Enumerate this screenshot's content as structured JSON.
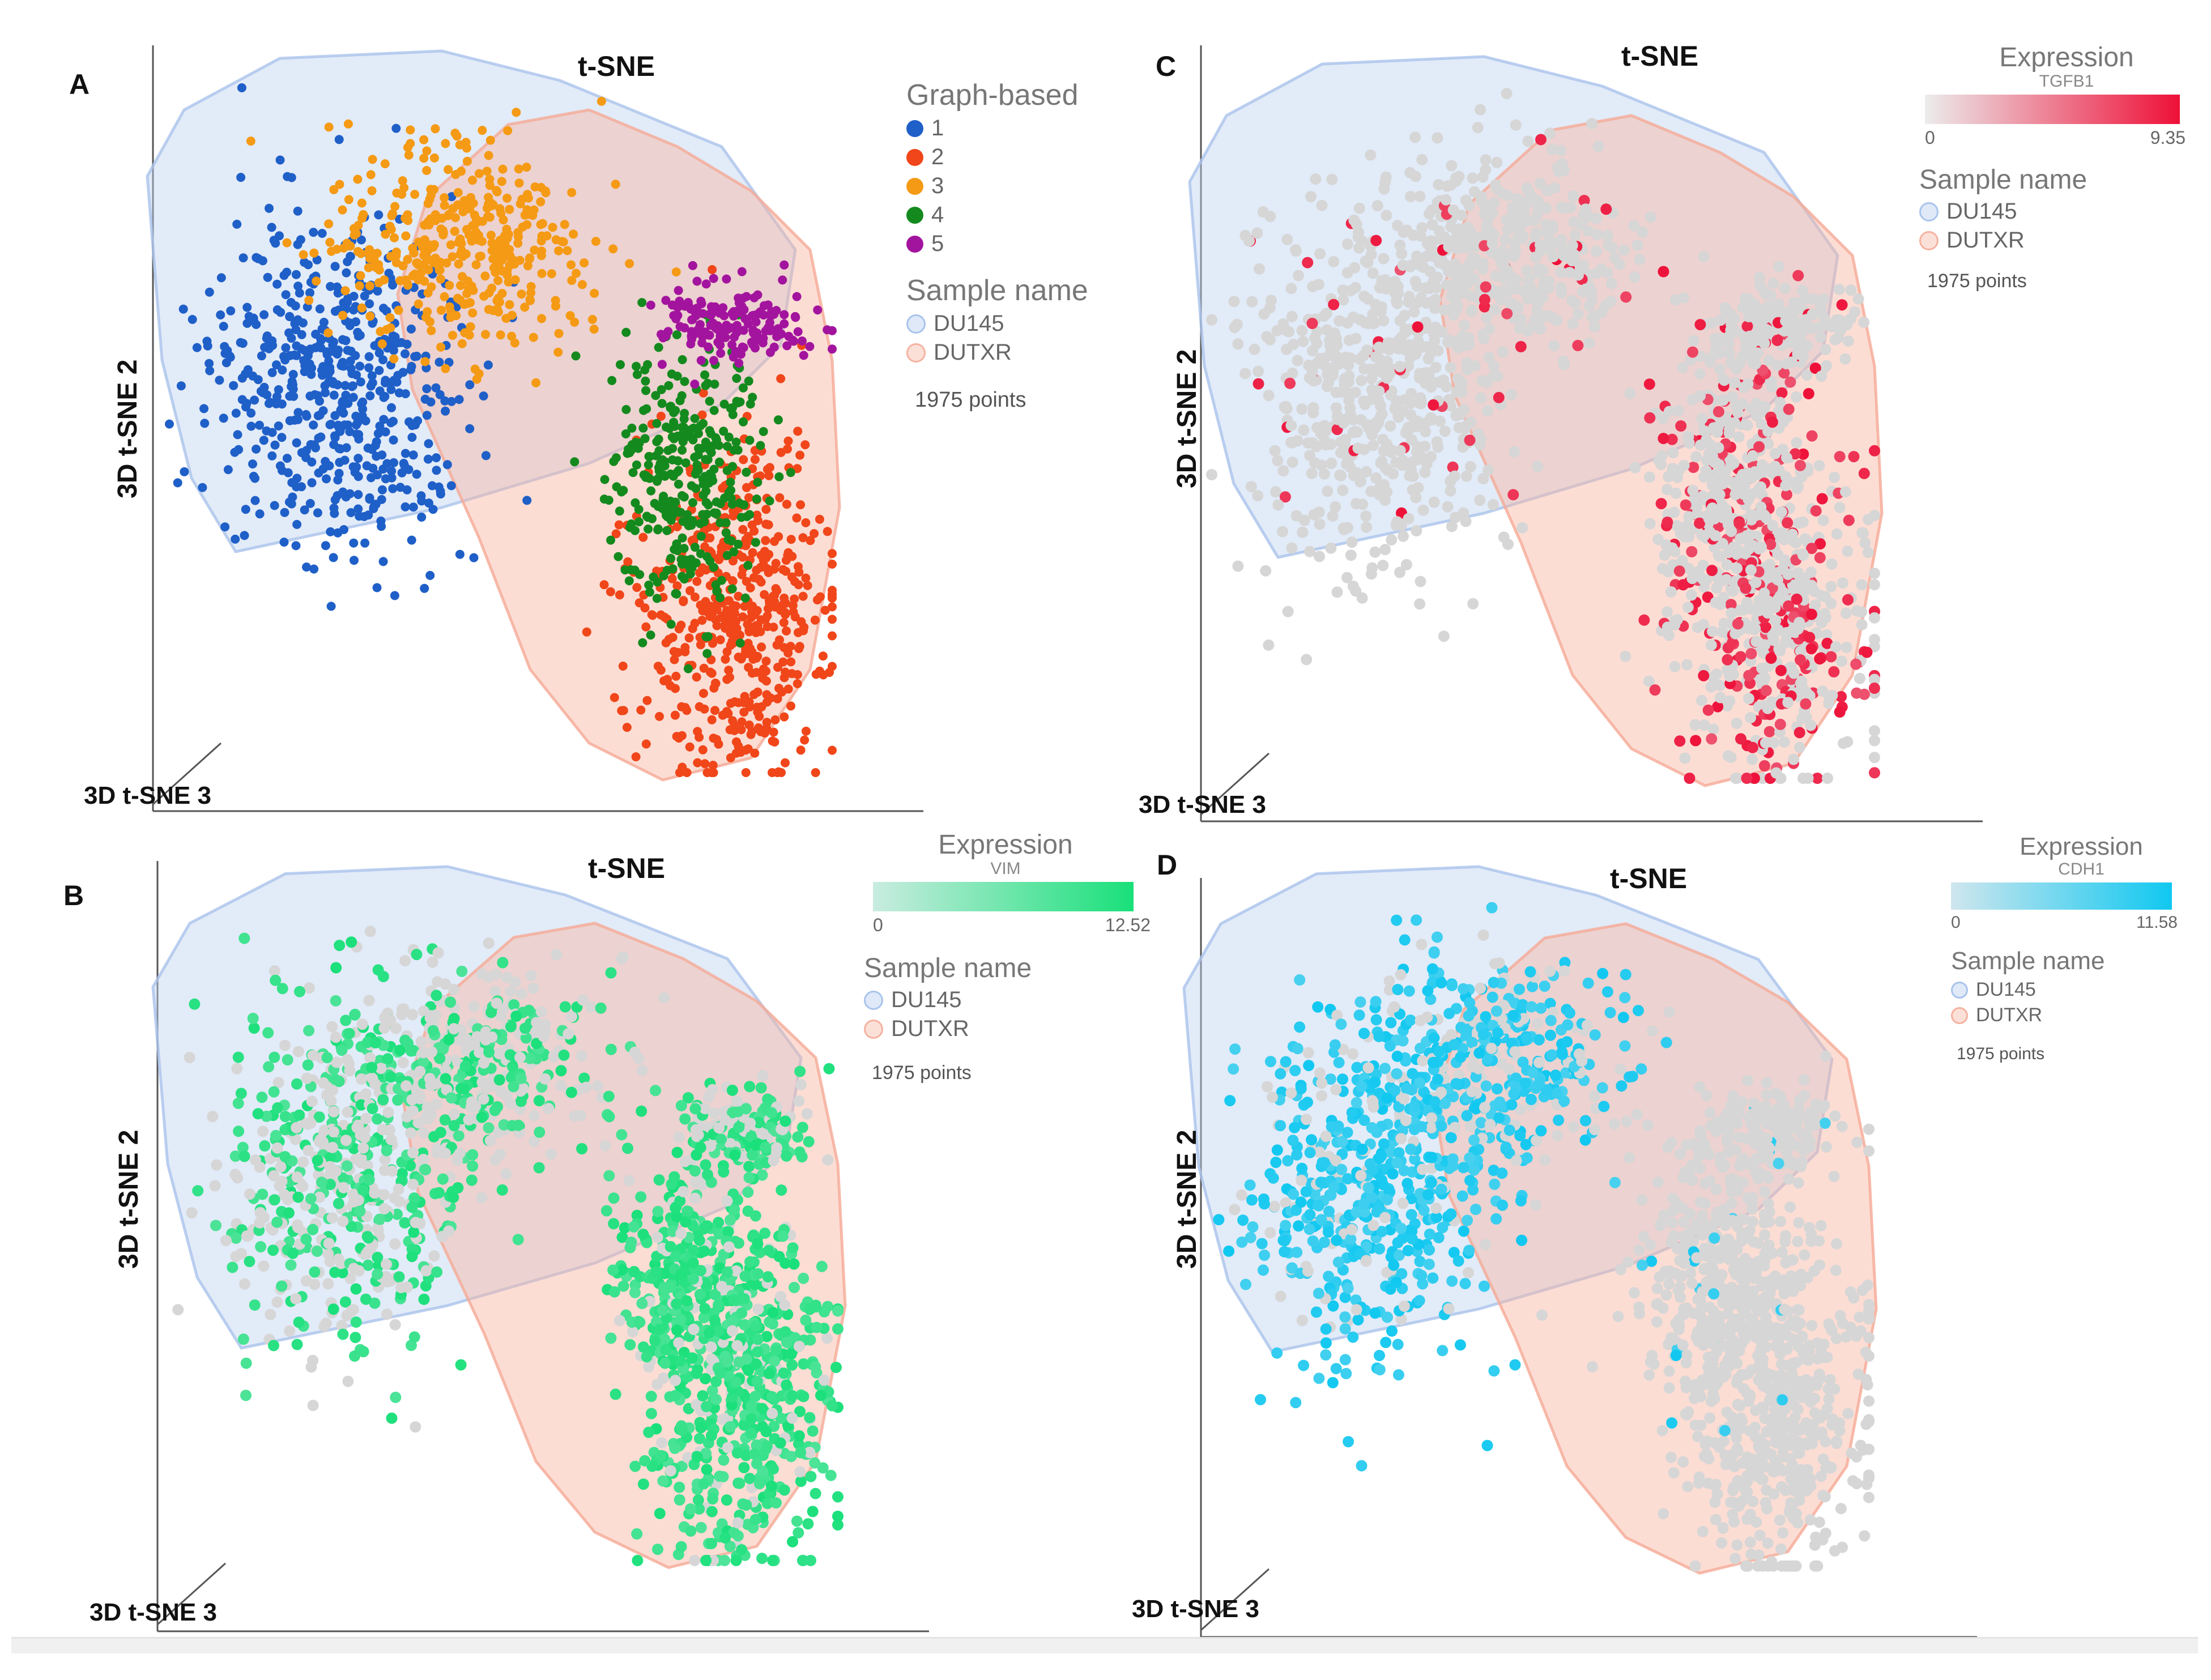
{
  "figure": {
    "panels": [
      {
        "letter": "A",
        "title": "t-SNE",
        "ylabel": "3D t-SNE 2",
        "xlabel": "3D t-SNE 3",
        "legend": {
          "title": "Graph-based",
          "items": [
            {
              "label": "1",
              "color": "#1f5fc8"
            },
            {
              "label": "2",
              "color": "#f0461a"
            },
            {
              "label": "3",
              "color": "#f59a14"
            },
            {
              "label": "4",
              "color": "#148a1e"
            },
            {
              "label": "5",
              "color": "#a3149e"
            }
          ],
          "sample_title": "Sample name",
          "samples": [
            {
              "label": "DU145",
              "color": "#a9c4ec"
            },
            {
              "label": "DUTXR",
              "color": "#f6b2a0"
            }
          ],
          "points": "1975 points"
        }
      },
      {
        "letter": "B",
        "title": "t-SNE",
        "ylabel": "3D t-SNE 2",
        "xlabel": "3D t-SNE 3",
        "legend": {
          "expression_title": "Expression",
          "gene": "VIM",
          "min": "0",
          "max": "12.52",
          "gradient_from": "#c9ece0",
          "gradient_to": "#19e07a",
          "sample_title": "Sample name",
          "samples": [
            {
              "label": "DU145",
              "color": "#a9c4ec"
            },
            {
              "label": "DUTXR",
              "color": "#f6b2a0"
            }
          ],
          "points": "1975 points"
        }
      },
      {
        "letter": "C",
        "title": "t-SNE",
        "ylabel": "3D t-SNE 2",
        "xlabel": "3D t-SNE 3",
        "legend": {
          "expression_title": "Expression",
          "gene": "TGFB1",
          "min": "0",
          "max": "9.35",
          "gradient_from": "#ececec",
          "gradient_to": "#ee1038",
          "sample_title": "Sample name",
          "samples": [
            {
              "label": "DU145",
              "color": "#a9c4ec"
            },
            {
              "label": "DUTXR",
              "color": "#f6b2a0"
            }
          ],
          "points": "1975 points"
        }
      },
      {
        "letter": "D",
        "title": "t-SNE",
        "ylabel": "3D t-SNE 2",
        "xlabel": "3D t-SNE 3",
        "legend": {
          "expression_title": "Expression",
          "gene": "CDH1",
          "min": "0",
          "max": "11.58",
          "gradient_from": "#cfe6ee",
          "gradient_to": "#10c8f0",
          "sample_title": "Sample name",
          "samples": [
            {
              "label": "DU145",
              "color": "#a9c4ec"
            },
            {
              "label": "DUTXR",
              "color": "#f6b2a0"
            }
          ],
          "points": "1975 points"
        }
      }
    ]
  },
  "chart_data": [
    {
      "type": "scatter",
      "panel": "A",
      "title": "t-SNE",
      "xlabel": "3D t-SNE 3",
      "ylabel": "3D t-SNE 2",
      "color_by": "Graph-based",
      "total_points": 1975,
      "hulls": [
        "DU145",
        "DUTXR"
      ],
      "series": [
        {
          "name": "1",
          "approx_center": [
            0.25,
            0.45
          ],
          "approx_count": 560
        },
        {
          "name": "2",
          "approx_center": [
            0.8,
            0.75
          ],
          "approx_count": 520
        },
        {
          "name": "3",
          "approx_center": [
            0.42,
            0.28
          ],
          "approx_count": 400
        },
        {
          "name": "4",
          "approx_center": [
            0.73,
            0.58
          ],
          "approx_count": 330
        },
        {
          "name": "5",
          "approx_center": [
            0.8,
            0.37
          ],
          "approx_count": 165
        }
      ]
    },
    {
      "type": "scatter",
      "panel": "B",
      "title": "t-SNE",
      "xlabel": "3D t-SNE 3",
      "ylabel": "3D t-SNE 2",
      "color_by": "Expression VIM",
      "range": [
        0,
        12.52
      ],
      "total_points": 1975,
      "high_expression_fraction": 0.6
    },
    {
      "type": "scatter",
      "panel": "C",
      "title": "t-SNE",
      "xlabel": "3D t-SNE 3",
      "ylabel": "3D t-SNE 2",
      "color_by": "Expression TGFB1",
      "range": [
        0,
        9.35
      ],
      "total_points": 1975,
      "high_expression_fraction": 0.15
    },
    {
      "type": "scatter",
      "panel": "D",
      "title": "t-SNE",
      "xlabel": "3D t-SNE 3",
      "ylabel": "3D t-SNE 2",
      "color_by": "Expression CDH1",
      "range": [
        0,
        11.58
      ],
      "total_points": 1975,
      "high_expression_fraction": 0.35
    }
  ]
}
